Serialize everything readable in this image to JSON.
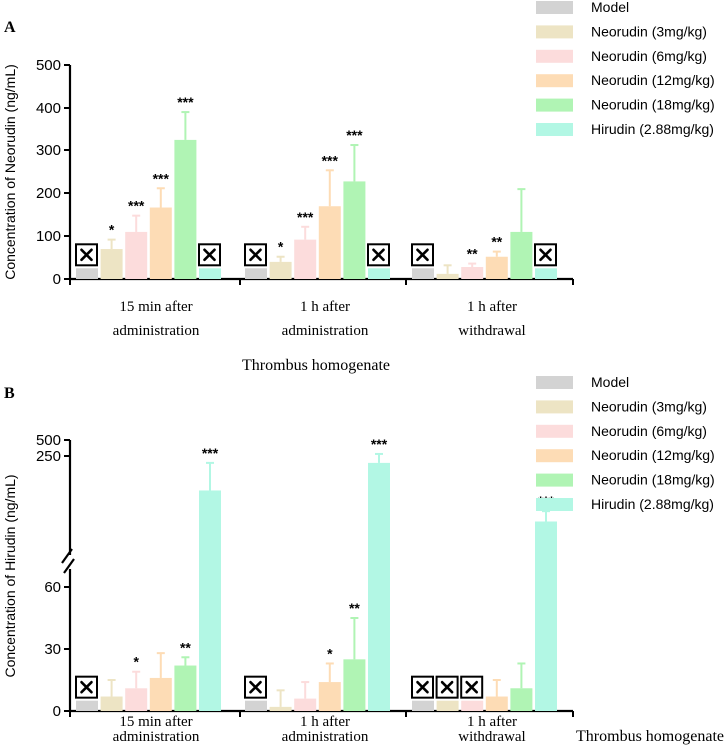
{
  "chart_data": [
    {
      "panel": "A",
      "type": "bar",
      "title": "",
      "xlabel": "Thrombus homogenate",
      "ylabel": "Concentration of Neorudin  (ng/mL)",
      "ylim": [
        0,
        500
      ],
      "yticks": [
        "0",
        "100",
        "200",
        "300",
        "400",
        "500"
      ],
      "categories": [
        [
          "15 min after",
          "administration"
        ],
        [
          "1 h after",
          "administration"
        ],
        [
          "1 h after",
          "withdrawal"
        ]
      ],
      "series": [
        {
          "name": "Model",
          "color": "#d3d3d3",
          "values": [
            25,
            25,
            25
          ],
          "errors": [
            0,
            0,
            0
          ],
          "marks": [
            "",
            "",
            ""
          ],
          "not_detected": [
            true,
            true,
            true
          ]
        },
        {
          "name": "Neorudin (3mg/kg)",
          "color": "#ede4c4",
          "values": [
            70,
            40,
            12
          ],
          "errors": [
            22,
            12,
            20
          ],
          "marks": [
            "*",
            "*",
            ""
          ],
          "not_detected": [
            false,
            false,
            false
          ]
        },
        {
          "name": "Neorudin (6mg/kg)",
          "color": "#fcdcdc",
          "values": [
            110,
            92,
            28
          ],
          "errors": [
            38,
            30,
            8
          ],
          "marks": [
            "***",
            "***",
            "**"
          ],
          "not_detected": [
            false,
            false,
            false
          ]
        },
        {
          "name": "Neorudin (12mg/kg)",
          "color": "#fddcb5",
          "values": [
            167,
            170,
            52
          ],
          "errors": [
            45,
            84,
            12
          ],
          "marks": [
            "***",
            "***",
            "**"
          ],
          "not_detected": [
            false,
            false,
            false
          ]
        },
        {
          "name": "Neorudin (18mg/kg)",
          "color": "#b0f4b4",
          "values": [
            325,
            228,
            110
          ],
          "errors": [
            65,
            85,
            100
          ],
          "marks": [
            "***",
            "***",
            ""
          ],
          "not_detected": [
            false,
            false,
            false
          ]
        },
        {
          "name": "Hirudin (2.88mg/kg)",
          "color": "#b2f7e4",
          "values": [
            25,
            25,
            25
          ],
          "errors": [
            0,
            0,
            0
          ],
          "marks": [
            "",
            "",
            ""
          ],
          "not_detected": [
            true,
            true,
            true
          ]
        }
      ]
    },
    {
      "panel": "B",
      "type": "bar",
      "title": "",
      "xlabel": "Thrombus homogenate",
      "ylabel": "Concentration of Hirudin  (ng/mL)",
      "ylim": [
        0,
        500
      ],
      "axis_break": [
        70,
        130
      ],
      "yticks": [
        "0",
        "30",
        "60",
        "250",
        "500"
      ],
      "categories": [
        [
          "15 min after",
          "administration"
        ],
        [
          "1 h after",
          "administration"
        ],
        [
          "1 h after",
          "withdrawal"
        ]
      ],
      "series": [
        {
          "name": "Model",
          "color": "#d3d3d3",
          "values": [
            5,
            5,
            5
          ],
          "errors": [
            0,
            0,
            0
          ],
          "marks": [
            "",
            "",
            ""
          ],
          "not_detected": [
            true,
            true,
            true
          ]
        },
        {
          "name": "Neorudin (3mg/kg)",
          "color": "#ede4c4",
          "values": [
            7,
            2,
            5
          ],
          "errors": [
            8,
            8,
            0
          ],
          "marks": [
            "",
            "",
            ""
          ],
          "not_detected": [
            false,
            false,
            true
          ]
        },
        {
          "name": "Neorudin (6mg/kg)",
          "color": "#fcdcdc",
          "values": [
            11,
            6,
            5
          ],
          "errors": [
            8,
            8,
            0
          ],
          "marks": [
            "*",
            "",
            ""
          ],
          "not_detected": [
            false,
            false,
            true
          ]
        },
        {
          "name": "Neorudin (12mg/kg)",
          "color": "#fddcb5",
          "values": [
            16,
            14,
            7
          ],
          "errors": [
            12,
            9,
            8
          ],
          "marks": [
            "",
            "*",
            ""
          ],
          "not_detected": [
            false,
            false,
            false
          ]
        },
        {
          "name": "Neorudin (18mg/kg)",
          "color": "#b0f4b4",
          "values": [
            22,
            25,
            11
          ],
          "errors": [
            4,
            20,
            12
          ],
          "marks": [
            "**",
            "**",
            ""
          ],
          "not_detected": [
            false,
            false,
            false
          ]
        },
        {
          "name": "Hirudin (2.88mg/kg)",
          "color": "#b2f7e4",
          "values": [
            200,
            240,
            155
          ],
          "errors": [
            40,
            42,
            15
          ],
          "marks": [
            "***",
            "***",
            "***"
          ],
          "not_detected": [
            false,
            false,
            false
          ]
        }
      ]
    }
  ]
}
